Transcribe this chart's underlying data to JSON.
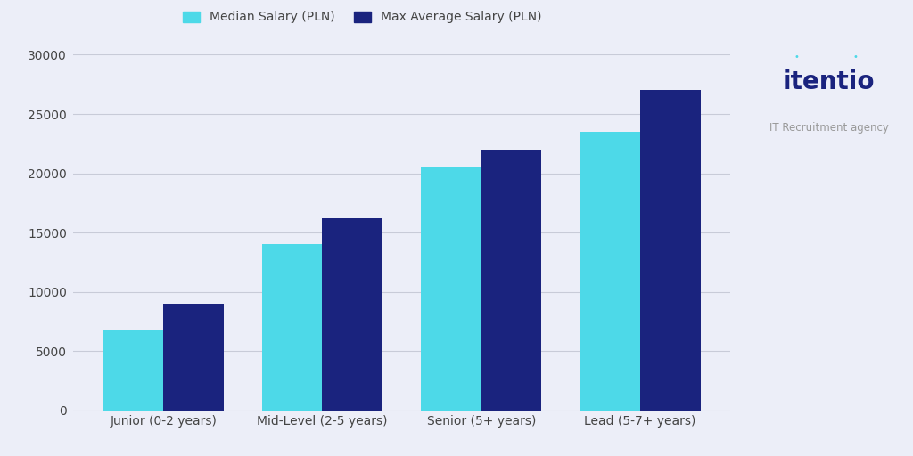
{
  "categories": [
    "Junior (0-2 years)",
    "Mid-Level (2-5 years)",
    "Senior (5+ years)",
    "Lead (5-7+ years)"
  ],
  "median_salary": [
    6800,
    14000,
    20500,
    23500
  ],
  "max_avg_salary": [
    9000,
    16200,
    22000,
    27000
  ],
  "median_color": "#4DD9E8",
  "max_avg_color": "#1A237E",
  "background_color": "#ECEEF8",
  "legend_labels": [
    "Median Salary (PLN)",
    "Max Average Salary (PLN)"
  ],
  "ylim": [
    0,
    30000
  ],
  "yticks": [
    0,
    5000,
    10000,
    15000,
    20000,
    25000,
    30000
  ],
  "bar_width": 0.38,
  "grid_color": "#C8CBD8",
  "logo_text": "itentio",
  "logo_subtitle": "IT Recruitment agency",
  "logo_color": "#1A237E",
  "logo_subtitle_color": "#999999",
  "dot_color": "#4DD9E8",
  "tick_label_color": "#444444"
}
